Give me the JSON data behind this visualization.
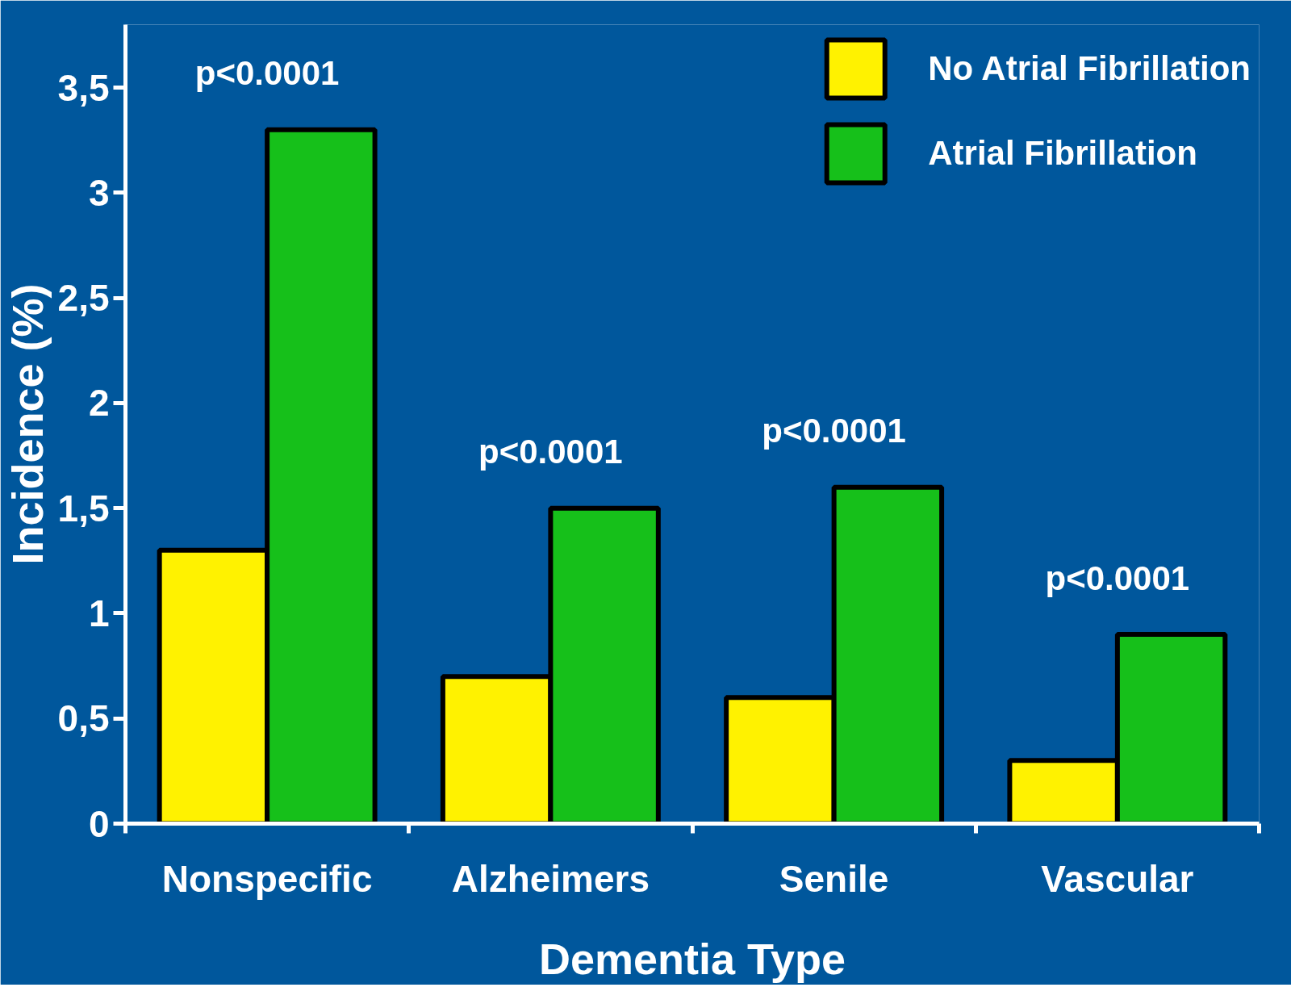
{
  "chart_data": {
    "type": "bar",
    "xlabel": "Dementia Type",
    "ylabel": "Incidence (%)",
    "categories": [
      "Nonspecific",
      "Alzheimers",
      "Senile",
      "Vascular"
    ],
    "series": [
      {
        "name": "No Atrial Fibrillation",
        "color": "#fff200",
        "values": [
          1.3,
          0.7,
          0.6,
          0.3
        ]
      },
      {
        "name": "Atrial Fibrillation",
        "color": "#16c01a",
        "values": [
          3.3,
          1.5,
          1.6,
          0.9
        ]
      }
    ],
    "ylim": [
      0,
      3.8
    ],
    "yticks": [
      0,
      {
        "value": 0.5,
        "label": "0,5"
      },
      1,
      {
        "value": 1.5,
        "label": "1,5"
      },
      2,
      {
        "value": 2.5,
        "label": "2,5"
      },
      3,
      {
        "value": 3.5,
        "label": "3,5"
      }
    ],
    "annotations": [
      "p<0.0001",
      "p<0.0001",
      "p<0.0001",
      "p<0.0001"
    ],
    "grid": false,
    "legend": "top right"
  }
}
